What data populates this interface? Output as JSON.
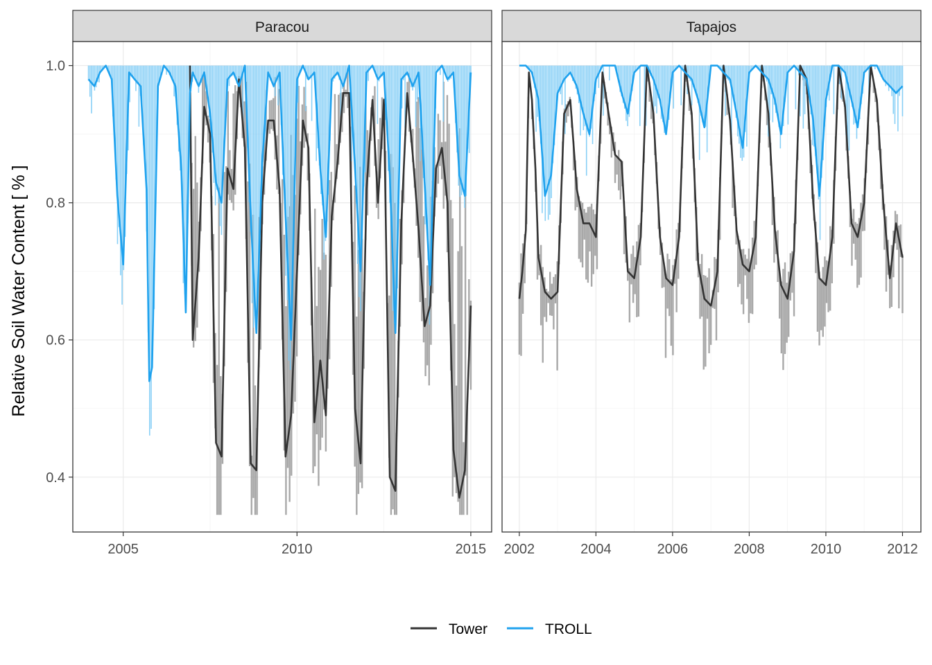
{
  "chart_data": {
    "type": "line",
    "ylabel": "Relative Soil Water Content [ % ]",
    "xlabel": "",
    "ylim": [
      0.32,
      1.035
    ],
    "yticks": [
      0.4,
      0.6,
      0.8,
      1.0
    ],
    "ytick_labels": [
      "0.4",
      "0.6",
      "0.8",
      "1.0"
    ],
    "grid": true,
    "legend_position": "bottom",
    "legend": [
      {
        "name": "Tower",
        "color": "#333333"
      },
      {
        "name": "TROLL",
        "color": "#1FA2EE"
      }
    ],
    "series_colors": {
      "Tower": "#333333",
      "TROLL": "#1FA2EE",
      "Tower_daily": "#9a9a9a",
      "TROLL_daily": "#7DCBF6"
    },
    "panels": [
      {
        "strip": "Paracou",
        "xlim": [
          2003.55,
          2015.6
        ],
        "xticks": [
          2005,
          2010,
          2015
        ],
        "xtick_labels": [
          "2005",
          "2010",
          "2015"
        ],
        "series": [
          {
            "name": "TROLL",
            "x": [
              2004.0,
              2004.17,
              2004.33,
              2004.5,
              2004.67,
              2004.83,
              2005.0,
              2005.17,
              2005.33,
              2005.5,
              2005.67,
              2005.75,
              2005.83,
              2006.0,
              2006.17,
              2006.33,
              2006.5,
              2006.67,
              2006.8,
              2006.92,
              2007.0,
              2007.17,
              2007.33,
              2007.5,
              2007.67,
              2007.83,
              2008.0,
              2008.17,
              2008.33,
              2008.5,
              2008.67,
              2008.83,
              2009.0,
              2009.17,
              2009.33,
              2009.5,
              2009.67,
              2009.83,
              2010.0,
              2010.17,
              2010.33,
              2010.5,
              2010.67,
              2010.83,
              2011.0,
              2011.17,
              2011.33,
              2011.5,
              2011.67,
              2011.83,
              2012.0,
              2012.17,
              2012.33,
              2012.5,
              2012.67,
              2012.83,
              2013.0,
              2013.17,
              2013.33,
              2013.5,
              2013.67,
              2013.83,
              2014.0,
              2014.17,
              2014.33,
              2014.5,
              2014.67,
              2014.83,
              2015.0
            ],
            "y": [
              0.98,
              0.97,
              0.99,
              1.0,
              0.98,
              0.81,
              0.71,
              0.99,
              0.98,
              0.97,
              0.82,
              0.54,
              0.56,
              0.97,
              1.0,
              0.99,
              0.97,
              0.85,
              0.64,
              0.96,
              0.99,
              0.97,
              0.99,
              0.93,
              0.83,
              0.8,
              0.98,
              0.99,
              0.97,
              1.0,
              0.78,
              0.61,
              0.86,
              0.99,
              0.97,
              0.99,
              0.78,
              0.6,
              0.98,
              1.0,
              0.98,
              0.99,
              0.85,
              0.75,
              0.98,
              0.99,
              0.97,
              1.0,
              0.85,
              0.7,
              0.99,
              1.0,
              0.98,
              0.99,
              0.84,
              0.61,
              0.98,
              0.99,
              0.97,
              0.99,
              0.83,
              0.68,
              0.99,
              1.0,
              0.98,
              0.99,
              0.84,
              0.81,
              0.99
            ]
          },
          {
            "name": "Tower",
            "x": [
              2006.92,
              2007.0,
              2007.17,
              2007.33,
              2007.5,
              2007.67,
              2007.83,
              2008.0,
              2008.17,
              2008.33,
              2008.5,
              2008.67,
              2008.83,
              2009.0,
              2009.17,
              2009.33,
              2009.5,
              2009.67,
              2009.83,
              2010.0,
              2010.17,
              2010.33,
              2010.5,
              2010.67,
              2010.83,
              2011.0,
              2011.17,
              2011.33,
              2011.5,
              2011.67,
              2011.83,
              2012.0,
              2012.17,
              2012.33,
              2012.5,
              2012.67,
              2012.83,
              2013.0,
              2013.17,
              2013.33,
              2013.5,
              2013.67,
              2013.83,
              2014.0,
              2014.17,
              2014.33,
              2014.5,
              2014.67,
              2014.83,
              2015.0
            ],
            "y": [
              1.0,
              0.6,
              0.72,
              0.94,
              0.9,
              0.45,
              0.43,
              0.85,
              0.82,
              0.98,
              0.88,
              0.42,
              0.41,
              0.8,
              0.92,
              0.92,
              0.82,
              0.43,
              0.49,
              0.7,
              0.92,
              0.88,
              0.48,
              0.57,
              0.49,
              0.78,
              0.86,
              0.96,
              0.96,
              0.5,
              0.42,
              0.82,
              0.95,
              0.8,
              0.95,
              0.4,
              0.38,
              0.77,
              0.96,
              0.87,
              0.76,
              0.62,
              0.65,
              0.85,
              0.88,
              0.8,
              0.44,
              0.37,
              0.41,
              0.65
            ]
          }
        ]
      },
      {
        "strip": "Tapajos",
        "xlim": [
          2001.55,
          2012.48
        ],
        "xticks": [
          2002,
          2004,
          2006,
          2008,
          2010,
          2012
        ],
        "xtick_labels": [
          "2002",
          "2004",
          "2006",
          "2008",
          "2010",
          "2012"
        ],
        "series": [
          {
            "name": "TROLL",
            "x": [
              2002.0,
              2002.17,
              2002.33,
              2002.5,
              2002.67,
              2002.83,
              2003.0,
              2003.17,
              2003.33,
              2003.5,
              2003.67,
              2003.83,
              2004.0,
              2004.17,
              2004.33,
              2004.5,
              2004.67,
              2004.83,
              2005.0,
              2005.17,
              2005.33,
              2005.5,
              2005.67,
              2005.83,
              2006.0,
              2006.17,
              2006.33,
              2006.5,
              2006.67,
              2006.83,
              2007.0,
              2007.17,
              2007.33,
              2007.5,
              2007.67,
              2007.83,
              2008.0,
              2008.17,
              2008.33,
              2008.5,
              2008.67,
              2008.83,
              2009.0,
              2009.17,
              2009.33,
              2009.5,
              2009.67,
              2009.83,
              2010.0,
              2010.17,
              2010.33,
              2010.5,
              2010.67,
              2010.83,
              2011.0,
              2011.17,
              2011.33,
              2011.5,
              2011.67,
              2011.83,
              2012.0
            ],
            "y": [
              1.0,
              1.0,
              0.99,
              0.95,
              0.81,
              0.84,
              0.96,
              0.98,
              0.99,
              0.97,
              0.93,
              0.9,
              0.98,
              1.0,
              1.0,
              1.0,
              0.96,
              0.93,
              0.99,
              1.0,
              1.0,
              0.98,
              0.95,
              0.9,
              0.99,
              1.0,
              0.99,
              0.98,
              0.95,
              0.91,
              1.0,
              1.0,
              0.99,
              0.98,
              0.93,
              0.88,
              0.99,
              1.0,
              0.99,
              0.98,
              0.95,
              0.9,
              0.99,
              1.0,
              0.99,
              0.98,
              0.92,
              0.81,
              0.95,
              1.0,
              1.0,
              0.99,
              0.95,
              0.91,
              0.99,
              1.0,
              1.0,
              0.98,
              0.97,
              0.96,
              0.97
            ]
          },
          {
            "name": "Tower",
            "x": [
              2002.0,
              2002.08,
              2002.17,
              2002.25,
              2002.33,
              2002.42,
              2002.5,
              2002.67,
              2002.83,
              2003.0,
              2003.17,
              2003.33,
              2003.5,
              2003.67,
              2003.83,
              2004.0,
              2004.17,
              2004.33,
              2004.5,
              2004.67,
              2004.83,
              2005.0,
              2005.17,
              2005.33,
              2005.5,
              2005.67,
              2005.83,
              2006.0,
              2006.17,
              2006.33,
              2006.5,
              2006.67,
              2006.83,
              2007.0,
              2007.17,
              2007.33,
              2007.5,
              2007.67,
              2007.83,
              2008.0,
              2008.17,
              2008.33,
              2008.5,
              2008.67,
              2008.83,
              2009.0,
              2009.17,
              2009.33,
              2009.5,
              2009.67,
              2009.83,
              2010.0,
              2010.17,
              2010.33,
              2010.5,
              2010.67,
              2010.83,
              2011.0,
              2011.17,
              2011.33,
              2011.5,
              2011.67,
              2011.83,
              2012.0
            ],
            "y": [
              0.66,
              0.7,
              0.76,
              0.99,
              0.95,
              0.85,
              0.72,
              0.67,
              0.66,
              0.67,
              0.93,
              0.95,
              0.82,
              0.77,
              0.77,
              0.75,
              0.99,
              0.93,
              0.87,
              0.86,
              0.7,
              0.69,
              0.75,
              1.0,
              0.93,
              0.75,
              0.69,
              0.68,
              0.75,
              1.0,
              0.93,
              0.71,
              0.66,
              0.65,
              0.7,
              1.0,
              0.92,
              0.76,
              0.71,
              0.7,
              0.75,
              1.0,
              0.93,
              0.76,
              0.68,
              0.66,
              0.73,
              1.0,
              0.98,
              0.8,
              0.69,
              0.68,
              0.75,
              1.0,
              0.94,
              0.77,
              0.75,
              0.8,
              1.0,
              0.95,
              0.8,
              0.69,
              0.77,
              0.72
            ]
          }
        ]
      }
    ]
  }
}
